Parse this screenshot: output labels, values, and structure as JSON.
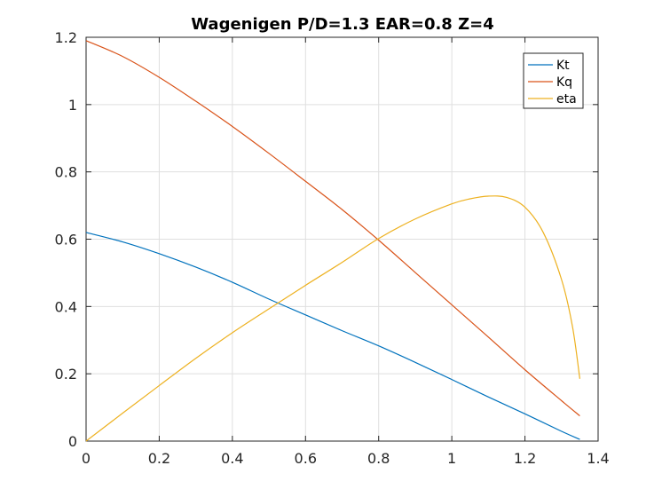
{
  "chart_data": {
    "type": "line",
    "title": "Wagenigen P/D=1.3 EAR=0.8 Z=4",
    "xlabel": "",
    "ylabel": "",
    "xlim": [
      0,
      1.4
    ],
    "ylim": [
      0,
      1.2
    ],
    "x_ticks": [
      0,
      0.2,
      0.4,
      0.6,
      0.8,
      1,
      1.2,
      1.4
    ],
    "x_tick_labels": [
      "0",
      "0.2",
      "0.4",
      "0.6",
      "0.8",
      "1",
      "1.2",
      "1.4"
    ],
    "y_ticks": [
      0,
      0.2,
      0.4,
      0.6,
      0.8,
      1,
      1.2
    ],
    "y_tick_labels": [
      "0",
      "0.2",
      "0.4",
      "0.6",
      "0.8",
      "1",
      "1.2"
    ],
    "grid": true,
    "legend_position": "top-right",
    "series": [
      {
        "name": "Kt",
        "color": "#0072BD",
        "x": [
          0,
          0.1,
          0.2,
          0.3,
          0.4,
          0.5,
          0.6,
          0.7,
          0.8,
          0.9,
          1.0,
          1.1,
          1.2,
          1.3,
          1.35
        ],
        "y": [
          0.62,
          0.592,
          0.557,
          0.517,
          0.472,
          0.422,
          0.375,
          0.328,
          0.283,
          0.234,
          0.183,
          0.131,
          0.081,
          0.029,
          0.005
        ]
      },
      {
        "name": "Kq",
        "color": "#D95319",
        "x": [
          0,
          0.1,
          0.2,
          0.3,
          0.4,
          0.5,
          0.6,
          0.7,
          0.8,
          0.9,
          1.0,
          1.1,
          1.2,
          1.3,
          1.35
        ],
        "y": [
          1.19,
          1.143,
          1.081,
          1.01,
          0.935,
          0.855,
          0.772,
          0.688,
          0.597,
          0.501,
          0.405,
          0.309,
          0.212,
          0.12,
          0.075
        ]
      },
      {
        "name": "eta",
        "color": "#EDB120",
        "x": [
          0,
          0.1,
          0.2,
          0.3,
          0.4,
          0.5,
          0.6,
          0.7,
          0.8,
          0.9,
          1.0,
          1.05,
          1.1,
          1.15,
          1.2,
          1.25,
          1.3,
          1.33,
          1.35
        ],
        "y": [
          0,
          0.083,
          0.165,
          0.246,
          0.322,
          0.393,
          0.463,
          0.531,
          0.602,
          0.66,
          0.705,
          0.72,
          0.728,
          0.724,
          0.695,
          0.62,
          0.48,
          0.34,
          0.185
        ]
      }
    ]
  }
}
